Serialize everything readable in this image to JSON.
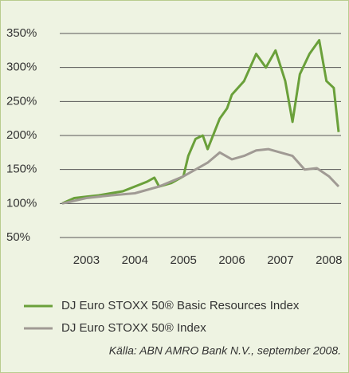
{
  "chart_data": {
    "type": "line",
    "x_values_note_free": null,
    "series": [
      {
        "name": "DJ Euro STOXX 50® Basic Resources Index",
        "color": "#6aa03a",
        "x": [
          2003.0,
          2003.25,
          2003.5,
          2003.75,
          2004.0,
          2004.25,
          2004.5,
          2004.75,
          2004.9,
          2005.0,
          2005.25,
          2005.5,
          2005.6,
          2005.75,
          2005.9,
          2006.0,
          2006.25,
          2006.4,
          2006.5,
          2006.75,
          2007.0,
          2007.2,
          2007.4,
          2007.6,
          2007.75,
          2007.9,
          2008.1,
          2008.3,
          2008.45,
          2008.6,
          2008.7
        ],
        "values": [
          100,
          108,
          110,
          112,
          115,
          118,
          125,
          132,
          138,
          125,
          130,
          140,
          170,
          195,
          200,
          180,
          225,
          240,
          260,
          280,
          320,
          300,
          325,
          280,
          220,
          290,
          320,
          340,
          280,
          270,
          205
        ]
      },
      {
        "name": "DJ Euro STOXX 50® Index",
        "color": "#a09a94",
        "x": [
          2003.0,
          2003.5,
          2004.0,
          2004.5,
          2005.0,
          2005.5,
          2005.75,
          2006.0,
          2006.25,
          2006.5,
          2006.75,
          2007.0,
          2007.25,
          2007.5,
          2007.75,
          2008.0,
          2008.25,
          2008.5,
          2008.7
        ],
        "values": [
          100,
          108,
          112,
          115,
          125,
          140,
          150,
          160,
          175,
          165,
          170,
          178,
          180,
          175,
          170,
          150,
          152,
          140,
          125
        ]
      }
    ],
    "xlim": [
      2003.0,
      2008.75
    ],
    "xticks": [
      {
        "value": 2003.5,
        "label": "2003"
      },
      {
        "value": 2004.5,
        "label": "2004"
      },
      {
        "value": 2005.5,
        "label": "2005"
      },
      {
        "value": 2006.5,
        "label": "2006"
      },
      {
        "value": 2007.5,
        "label": "2007"
      },
      {
        "value": 2008.5,
        "label": "2008"
      }
    ],
    "ylim": [
      50,
      350
    ],
    "yticks": [
      {
        "value": 50,
        "label": "50%"
      },
      {
        "value": 100,
        "label": "100%"
      },
      {
        "value": 150,
        "label": "150%"
      },
      {
        "value": 200,
        "label": "200%"
      },
      {
        "value": 250,
        "label": "250%"
      },
      {
        "value": 300,
        "label": "300%"
      },
      {
        "value": 350,
        "label": "350%"
      }
    ],
    "grid": true,
    "source": "Källa: ABN AMRO Bank N.V., september 2008."
  }
}
